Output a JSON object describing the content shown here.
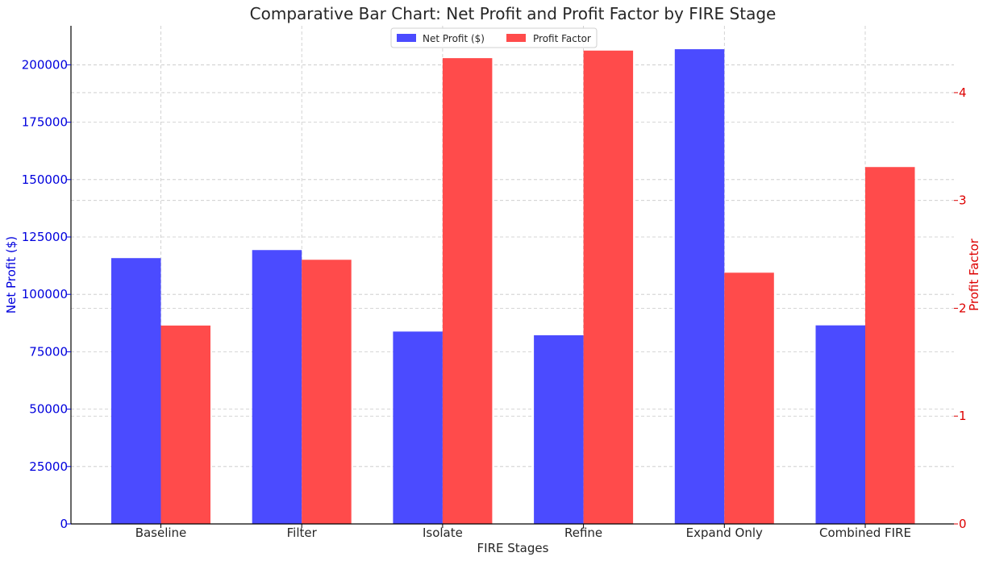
{
  "chart_data": {
    "type": "bar",
    "title": "Comparative Bar Chart: Net Profit and Profit Factor by FIRE Stage",
    "xlabel": "FIRE Stages",
    "categories": [
      "Baseline",
      "Filter",
      "Isolate",
      "Refine",
      "Expand Only",
      "Combined FIRE"
    ],
    "series": [
      {
        "name": "Net Profit ($)",
        "axis": "left",
        "color": "#4b4bff",
        "values": [
          115800,
          119300,
          83800,
          82200,
          206800,
          86500
        ]
      },
      {
        "name": "Profit Factor",
        "axis": "right",
        "color": "#ff4b4b",
        "values": [
          1.84,
          2.45,
          4.32,
          4.39,
          2.33,
          3.31
        ]
      }
    ],
    "left_axis": {
      "label": "Net Profit ($)",
      "color": "#0000dd",
      "ylim": [
        0,
        217000
      ],
      "ticks": [
        0,
        25000,
        50000,
        75000,
        100000,
        125000,
        150000,
        175000,
        200000
      ]
    },
    "right_axis": {
      "label": "Profit Factor",
      "color": "#dd0000",
      "ylim": [
        0,
        4.62
      ],
      "ticks": [
        0,
        1,
        2,
        3,
        4
      ]
    },
    "legend": {
      "position": "top-center",
      "entries": [
        "Net Profit ($)",
        "Profit Factor"
      ]
    },
    "grid": true
  }
}
